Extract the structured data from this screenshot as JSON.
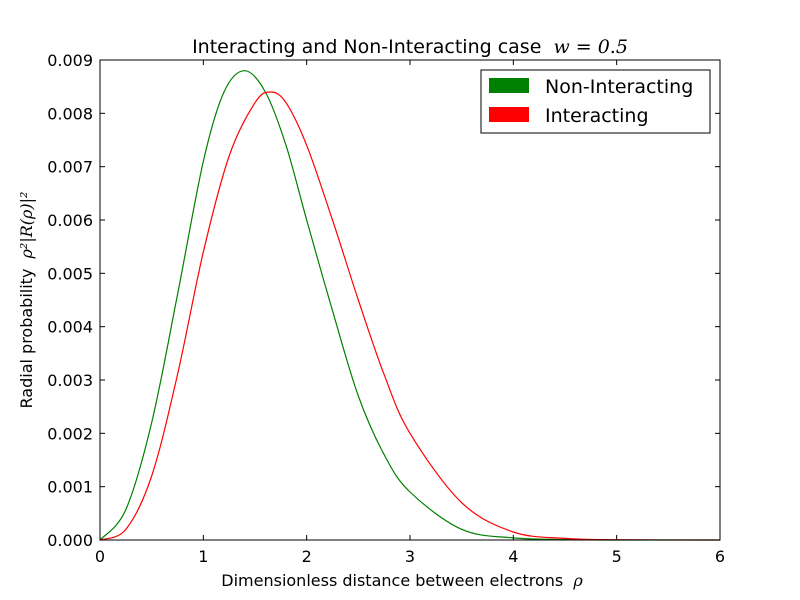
{
  "chart_data": {
    "type": "line",
    "title": "Interacting and Non-Interacting case",
    "title_math": "w = 0.5",
    "xlabel": "Dimensionless distance between electrons",
    "xlabel_math": "ρ",
    "ylabel": "Radial probability",
    "ylabel_math": "ρ²|R(ρ)|²",
    "xlim": [
      0,
      6
    ],
    "ylim": [
      0,
      0.009
    ],
    "x_ticks": [
      "0",
      "1",
      "2",
      "3",
      "4",
      "5",
      "6"
    ],
    "y_ticks": [
      "0.000",
      "0.001",
      "0.002",
      "0.003",
      "0.004",
      "0.005",
      "0.006",
      "0.007",
      "0.008",
      "0.009"
    ],
    "grid": false,
    "legend_position": "top-right",
    "series": [
      {
        "name": "Non-Interacting",
        "color": "#008000",
        "x": [
          0,
          0.25,
          0.5,
          0.75,
          1.0,
          1.2,
          1.4,
          1.6,
          1.8,
          2.0,
          2.25,
          2.5,
          2.75,
          3.0,
          3.5,
          4.0,
          4.5,
          5.0,
          6.0
        ],
        "y": [
          0,
          0.00057,
          0.0022,
          0.0046,
          0.0071,
          0.0084,
          0.0088,
          0.0084,
          0.0074,
          0.006,
          0.0043,
          0.0027,
          0.0016,
          0.0009,
          0.0002,
          4e-05,
          1e-05,
          0,
          0
        ]
      },
      {
        "name": "Interacting",
        "color": "#ff0000",
        "x": [
          0,
          0.25,
          0.5,
          0.75,
          1.0,
          1.25,
          1.5,
          1.65,
          1.8,
          2.0,
          2.25,
          2.5,
          2.75,
          3.0,
          3.5,
          4.0,
          4.5,
          5.0,
          6.0
        ],
        "y": [
          0,
          0.0002,
          0.0012,
          0.0031,
          0.0054,
          0.0072,
          0.0082,
          0.0084,
          0.0082,
          0.0074,
          0.006,
          0.0045,
          0.0031,
          0.002,
          0.0007,
          0.00015,
          3e-05,
          5e-06,
          0
        ]
      }
    ]
  }
}
